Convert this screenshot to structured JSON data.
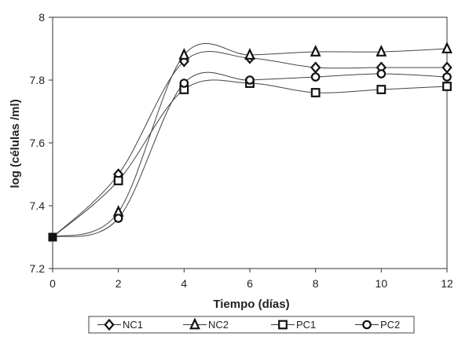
{
  "chart_data": {
    "type": "line",
    "xlabel": "Tiempo (días)",
    "ylabel": "log  (células /ml)",
    "xlim": [
      0,
      12
    ],
    "ylim": [
      7.2,
      8.0
    ],
    "x_ticks": [
      0,
      2,
      4,
      6,
      8,
      10,
      12
    ],
    "y_ticks": [
      7.2,
      7.4,
      7.6,
      7.8,
      8.0
    ],
    "y_tick_labels": [
      "7.2",
      "7.4",
      "7.6",
      "7.8",
      "8"
    ],
    "grid": false,
    "legend_position": "bottom",
    "x": [
      0,
      2,
      4,
      6,
      8,
      10,
      12
    ],
    "series": [
      {
        "name": "NC1",
        "marker": "diamond",
        "values": [
          7.3,
          7.5,
          7.86,
          7.87,
          7.84,
          7.84,
          7.84
        ]
      },
      {
        "name": "NC2",
        "marker": "triangle",
        "values": [
          7.3,
          7.38,
          7.88,
          7.88,
          7.89,
          7.89,
          7.9
        ]
      },
      {
        "name": "PC1",
        "marker": "square",
        "values": [
          7.3,
          7.48,
          7.77,
          7.79,
          7.76,
          7.77,
          7.78
        ]
      },
      {
        "name": "PC2",
        "marker": "circle",
        "values": [
          7.3,
          7.36,
          7.79,
          7.8,
          7.81,
          7.82,
          7.81
        ]
      }
    ]
  }
}
